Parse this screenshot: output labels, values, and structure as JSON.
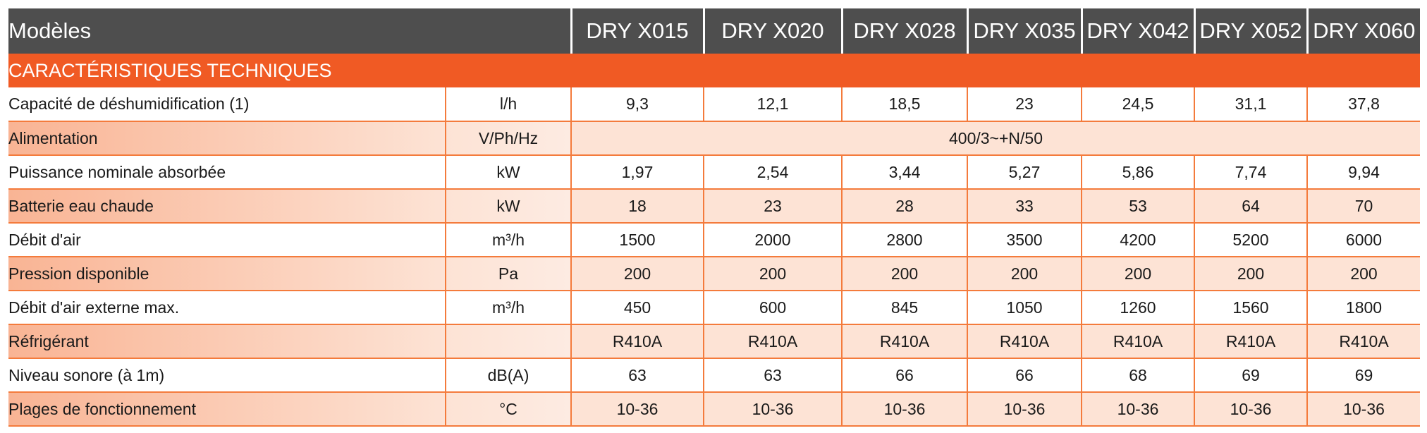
{
  "table": {
    "header": {
      "label": "Modèles",
      "models": [
        "DRY X015",
        "DRY X020",
        "DRY X028",
        "DRY X035",
        "DRY X042",
        "DRY X052",
        "DRY X060"
      ]
    },
    "section_title": "CARACTÉRISTIQUES TECHNIQUES",
    "rows": [
      {
        "label": "Capacité de déshumidification (1)",
        "unit": "l/h",
        "values": [
          "9,3",
          "12,1",
          "18,5",
          "23",
          "24,5",
          "31,1",
          "37,8"
        ]
      },
      {
        "label": "Alimentation",
        "unit": "V/Ph/Hz",
        "span_value": "400/3~+N/50"
      },
      {
        "label": "Puissance nominale absorbée",
        "unit": "kW",
        "values": [
          "1,97",
          "2,54",
          "3,44",
          "5,27",
          "5,86",
          "7,74",
          "9,94"
        ]
      },
      {
        "label": "Batterie eau chaude",
        "unit": "kW",
        "values": [
          "18",
          "23",
          "28",
          "33",
          "53",
          "64",
          "70"
        ]
      },
      {
        "label": "Débit d'air",
        "unit": "m³/h",
        "values": [
          "1500",
          "2000",
          "2800",
          "3500",
          "4200",
          "5200",
          "6000"
        ]
      },
      {
        "label": "Pression disponible",
        "unit": "Pa",
        "values": [
          "200",
          "200",
          "200",
          "200",
          "200",
          "200",
          "200"
        ]
      },
      {
        "label": "Débit d'air externe max.",
        "unit": "m³/h",
        "values": [
          "450",
          "600",
          "845",
          "1050",
          "1260",
          "1560",
          "1800"
        ]
      },
      {
        "label": "Réfrigérant",
        "unit": "",
        "values": [
          "R410A",
          "R410A",
          "R410A",
          "R410A",
          "R410A",
          "R410A",
          "R410A"
        ]
      },
      {
        "label": "Niveau sonore (à 1m)",
        "unit": "dB(A)",
        "values": [
          "63",
          "63",
          "66",
          "66",
          "68",
          "69",
          "69"
        ]
      },
      {
        "label": "Plages de fonctionnement",
        "unit": "°C",
        "values": [
          "10-36",
          "10-36",
          "10-36",
          "10-36",
          "10-36",
          "10-36",
          "10-36"
        ]
      }
    ]
  },
  "colors": {
    "header_bg": "#4e4e4e",
    "section_bg": "#f05a24",
    "row_alt_bg": "#fde3d5",
    "border": "#f47b3c"
  }
}
